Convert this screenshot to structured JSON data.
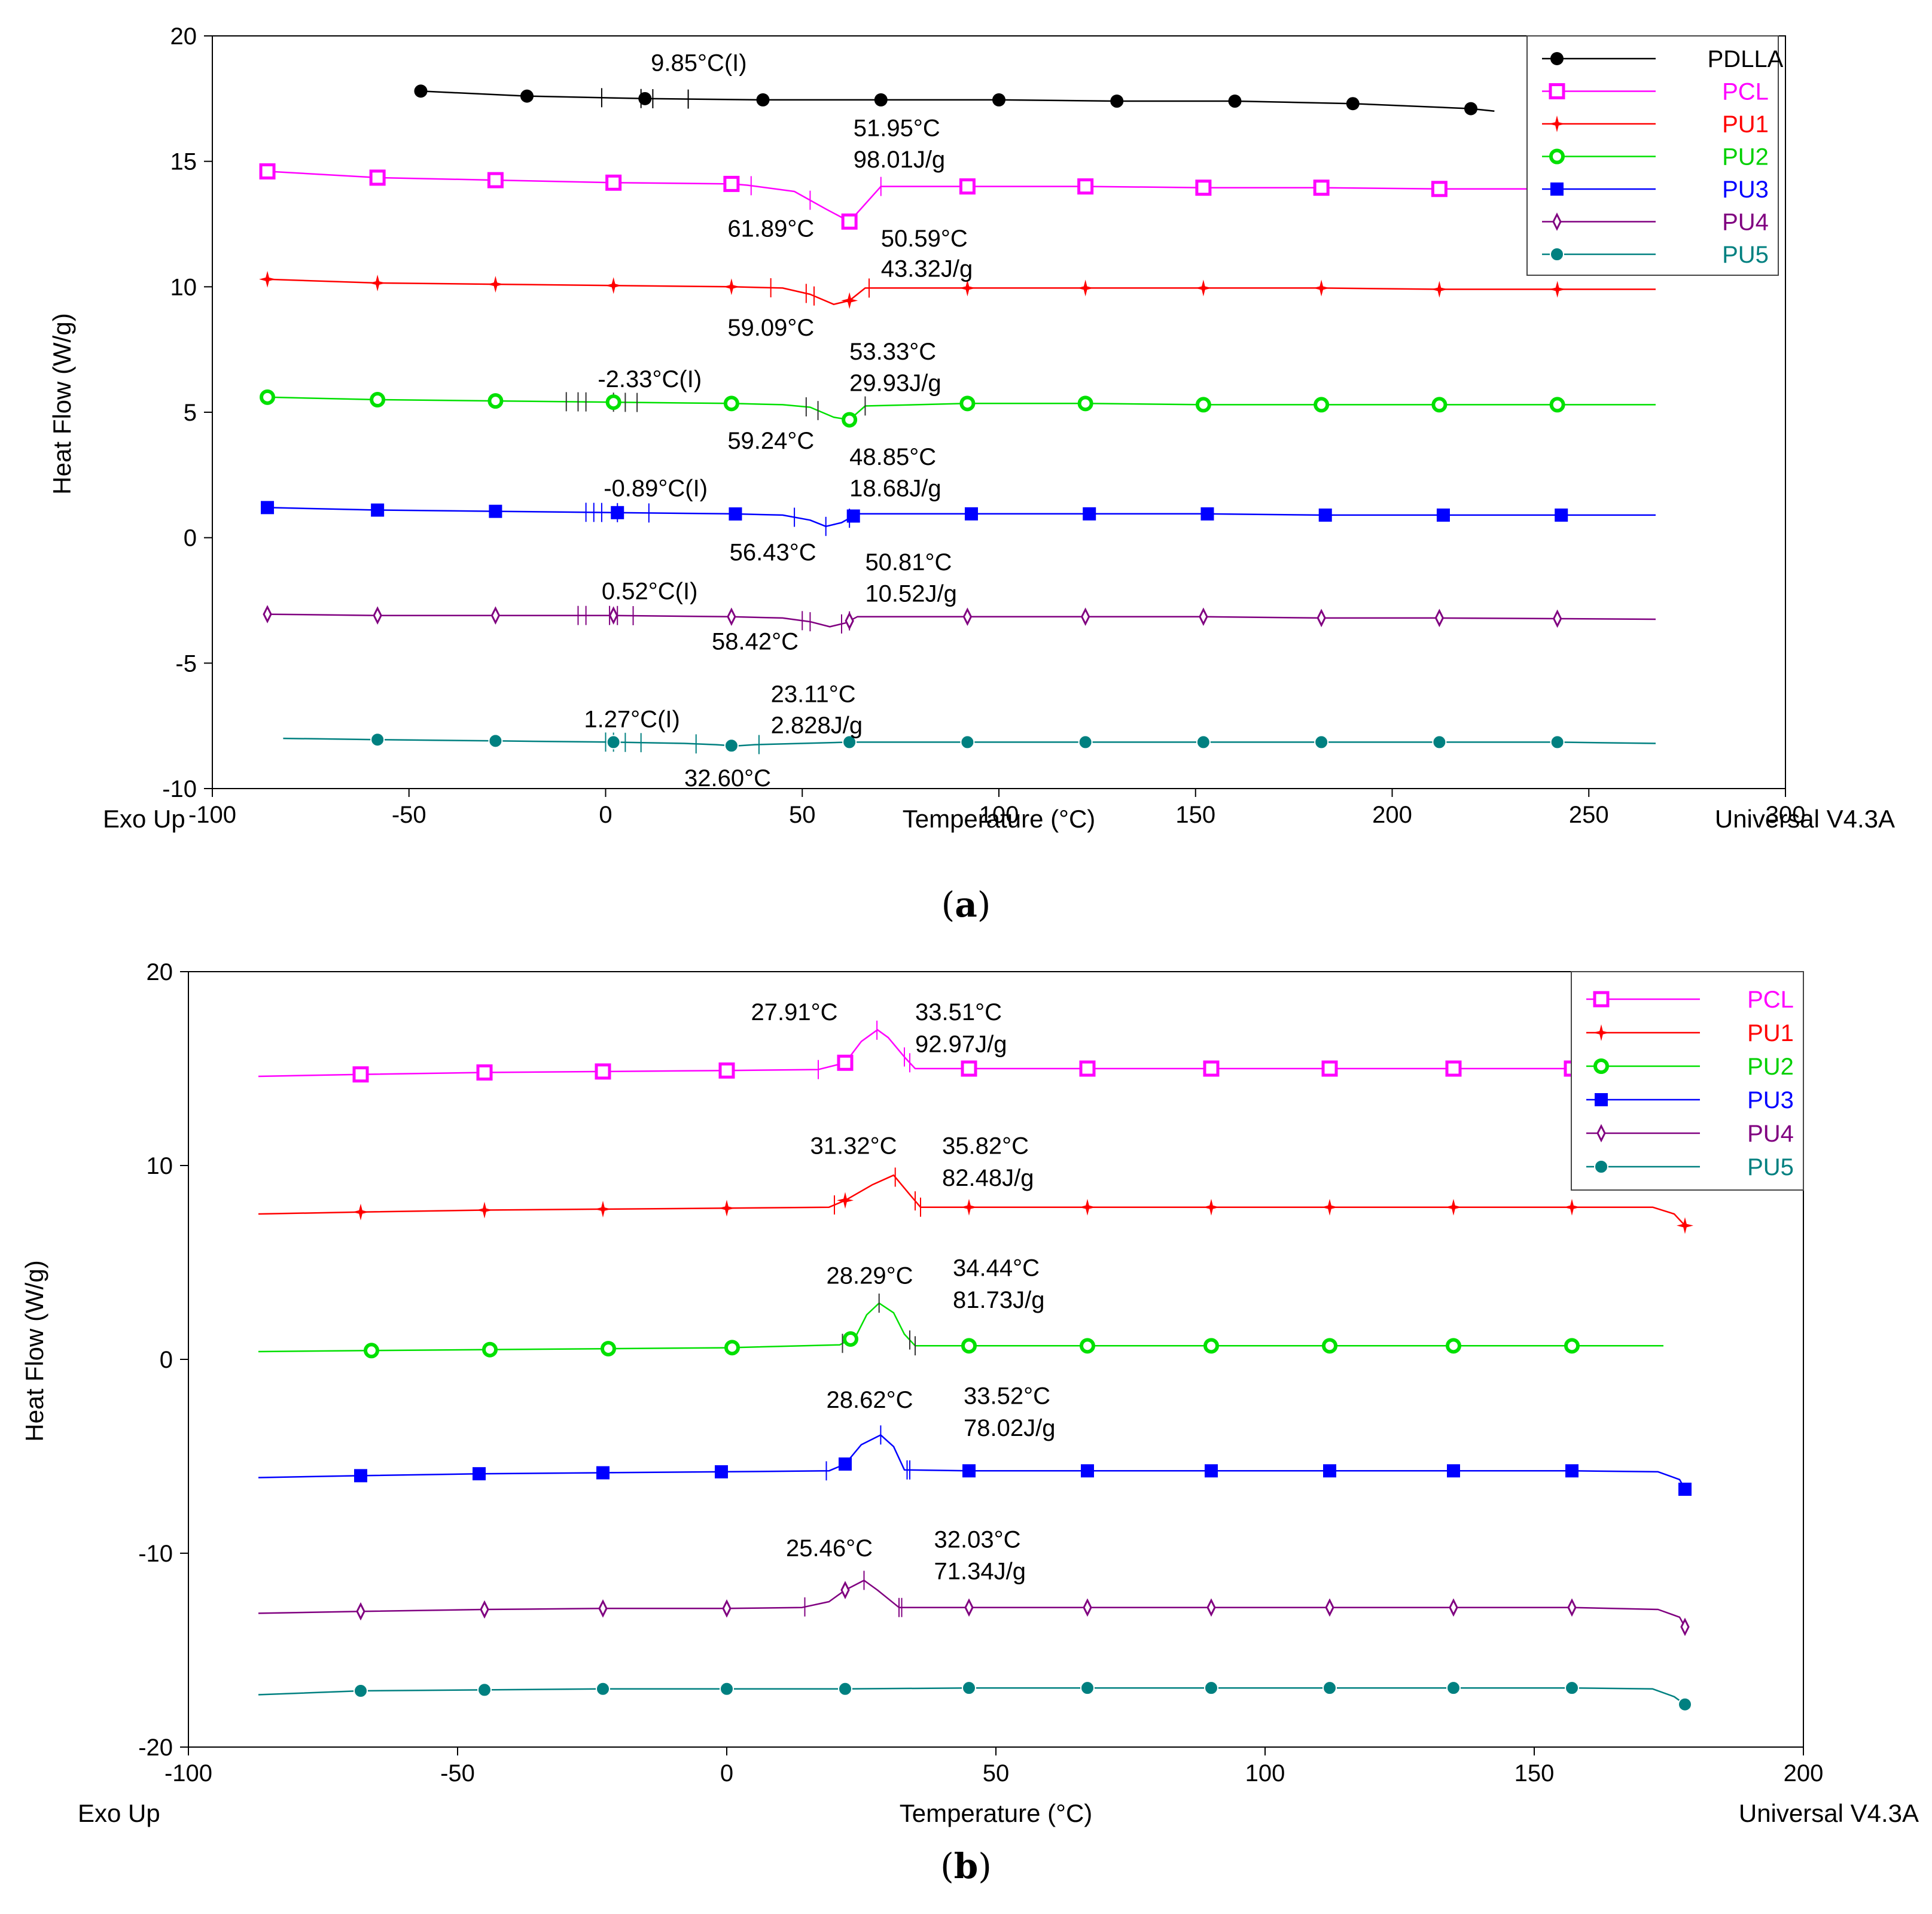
{
  "colors": {
    "PDLLA": "#000000",
    "PCL": "#ff00ff",
    "PU1": "#ff0000",
    "PU2": "#00e000",
    "PU3": "#0000ff",
    "PU4": "#800080",
    "PU5": "#008080",
    "axis": "#000000",
    "background": "#ffffff"
  },
  "chart_data": [
    {
      "panel": "(a)",
      "panel_letter": "a",
      "type": "line",
      "xlabel": "Temperature (°C)",
      "ylabel": "Heat Flow (W/g)",
      "corner_left": "Exo Up",
      "corner_right": "Universal V4.3A",
      "xlim": [
        -100,
        300
      ],
      "ylim": [
        -10,
        20
      ],
      "xticks": [
        -100,
        -50,
        0,
        50,
        100,
        150,
        200,
        250,
        300
      ],
      "yticks": [
        -10,
        -5,
        0,
        5,
        10,
        15,
        20
      ],
      "legend_position": "top-right",
      "series": [
        {
          "name": "PDLLA",
          "marker": "filled-circle",
          "x": [
            -47,
            -20,
            10,
            40,
            70,
            100,
            130,
            160,
            190,
            220,
            226
          ],
          "y": [
            17.8,
            17.6,
            17.5,
            17.45,
            17.45,
            17.45,
            17.4,
            17.4,
            17.3,
            17.1,
            17.0
          ],
          "marker_x": [
            -47,
            -20,
            10,
            40,
            70,
            100,
            130,
            160,
            190,
            220
          ],
          "tick_x": [
            -1,
            9,
            12,
            21
          ]
        },
        {
          "name": "PCL",
          "marker": "open-square",
          "x": [
            -86,
            -58,
            -28,
            2,
            32,
            36,
            48,
            56,
            62,
            66,
            70,
            92,
            122,
            152,
            182,
            212,
            267
          ],
          "y": [
            14.6,
            14.35,
            14.25,
            14.15,
            14.1,
            14.05,
            13.8,
            13.1,
            12.6,
            13.3,
            14.0,
            14.0,
            14.0,
            13.95,
            13.95,
            13.9,
            13.9
          ],
          "marker_x": [
            -86,
            -58,
            -28,
            2,
            32,
            62,
            92,
            122,
            152,
            182,
            212
          ],
          "tick_x": [
            37,
            52,
            70
          ]
        },
        {
          "name": "PU1",
          "marker": "star",
          "x": [
            -86,
            -58,
            -28,
            2,
            32,
            45,
            52,
            58,
            62,
            66,
            92,
            122,
            152,
            182,
            212,
            267
          ],
          "y": [
            10.3,
            10.15,
            10.1,
            10.05,
            10.0,
            9.95,
            9.7,
            9.3,
            9.45,
            9.95,
            9.95,
            9.95,
            9.95,
            9.95,
            9.9,
            9.9
          ],
          "marker_x": [
            -86,
            -58,
            -28,
            2,
            32,
            62,
            92,
            122,
            152,
            182,
            212,
            242
          ],
          "tick_x": [
            42,
            51,
            53,
            67
          ]
        },
        {
          "name": "PU2",
          "marker": "open-circle",
          "x": [
            -86,
            -58,
            -28,
            2,
            32,
            45,
            52,
            58,
            62,
            66,
            92,
            122,
            152,
            182,
            212,
            267
          ],
          "y": [
            5.6,
            5.5,
            5.45,
            5.4,
            5.35,
            5.3,
            5.2,
            4.8,
            4.7,
            5.25,
            5.35,
            5.35,
            5.3,
            5.3,
            5.3,
            5.3
          ],
          "marker_x": [
            -86,
            -58,
            -28,
            2,
            32,
            62,
            92,
            122,
            152,
            182,
            212,
            242
          ],
          "tick_x": [
            -10,
            -7,
            -5,
            2,
            5,
            8,
            51,
            54,
            66
          ]
        },
        {
          "name": "PU3",
          "marker": "filled-square",
          "x": [
            -86,
            -58,
            -28,
            2,
            32,
            45,
            52,
            56,
            60,
            64,
            92,
            122,
            152,
            182,
            212,
            267
          ],
          "y": [
            1.2,
            1.1,
            1.05,
            1.0,
            0.95,
            0.9,
            0.7,
            0.45,
            0.6,
            0.95,
            0.95,
            0.95,
            0.95,
            0.9,
            0.9,
            0.9
          ],
          "marker_x": [
            -86,
            -58,
            -28,
            3,
            33,
            63,
            93,
            123,
            153,
            183,
            213,
            243
          ],
          "tick_x": [
            -5,
            -3,
            -1,
            3,
            11,
            48,
            56,
            62
          ]
        },
        {
          "name": "PU4",
          "marker": "open-diamond",
          "x": [
            -86,
            -58,
            -28,
            2,
            32,
            45,
            52,
            57,
            61,
            64,
            92,
            122,
            152,
            182,
            212,
            267
          ],
          "y": [
            -3.05,
            -3.1,
            -3.1,
            -3.1,
            -3.15,
            -3.2,
            -3.35,
            -3.55,
            -3.4,
            -3.15,
            -3.15,
            -3.15,
            -3.15,
            -3.2,
            -3.2,
            -3.25
          ],
          "marker_x": [
            -86,
            -58,
            -28,
            2,
            32,
            62,
            92,
            122,
            152,
            182,
            212,
            242
          ],
          "tick_x": [
            -7,
            -5,
            1,
            3,
            7,
            50,
            52,
            60,
            62
          ]
        },
        {
          "name": "PU5",
          "marker": "filled-circle-open",
          "x": [
            -82,
            -58,
            -28,
            2,
            20,
            28,
            33,
            38,
            62,
            92,
            122,
            152,
            182,
            212,
            242,
            267
          ],
          "y": [
            -8.0,
            -8.05,
            -8.1,
            -8.15,
            -8.2,
            -8.25,
            -8.3,
            -8.25,
            -8.15,
            -8.15,
            -8.15,
            -8.15,
            -8.15,
            -8.15,
            -8.15,
            -8.2
          ],
          "marker_x": [
            -58,
            -28,
            2,
            32,
            62,
            92,
            122,
            152,
            182,
            212,
            242
          ],
          "tick_x": [
            0,
            2,
            5,
            9,
            23,
            39
          ]
        }
      ],
      "annotations": [
        {
          "text": "9.85°C(I)",
          "x": 11.5,
          "y": 18.6,
          "anchor": "start"
        },
        {
          "text": "51.95°C",
          "x": 63,
          "y": 16.0,
          "anchor": "start"
        },
        {
          "text": "98.01J/g",
          "x": 63,
          "y": 14.75,
          "anchor": "start"
        },
        {
          "text": "61.89°C",
          "x": 31,
          "y": 12.0,
          "anchor": "start"
        },
        {
          "text": "50.59°C",
          "x": 70,
          "y": 11.6,
          "anchor": "start"
        },
        {
          "text": "43.32J/g",
          "x": 70,
          "y": 10.4,
          "anchor": "start"
        },
        {
          "text": "59.09°C",
          "x": 31,
          "y": 8.05,
          "anchor": "start"
        },
        {
          "text": "53.33°C",
          "x": 62,
          "y": 7.1,
          "anchor": "start"
        },
        {
          "text": "29.93J/g",
          "x": 62,
          "y": 5.85,
          "anchor": "start"
        },
        {
          "text": "-2.33°C(I)",
          "x": -2,
          "y": 6.0,
          "anchor": "start"
        },
        {
          "text": "59.24°C",
          "x": 31,
          "y": 3.55,
          "anchor": "start"
        },
        {
          "text": "48.85°C",
          "x": 62,
          "y": 2.9,
          "anchor": "start"
        },
        {
          "text": "18.68J/g",
          "x": 62,
          "y": 1.65,
          "anchor": "start"
        },
        {
          "text": "-0.89°C(I)",
          "x": -0.5,
          "y": 1.65,
          "anchor": "start"
        },
        {
          "text": "56.43°C",
          "x": 31.5,
          "y": -0.9,
          "anchor": "start"
        },
        {
          "text": "50.81°C",
          "x": 66,
          "y": -1.3,
          "anchor": "start"
        },
        {
          "text": "10.52J/g",
          "x": 66,
          "y": -2.55,
          "anchor": "start"
        },
        {
          "text": "0.52°C(I)",
          "x": -1,
          "y": -2.45,
          "anchor": "start"
        },
        {
          "text": "58.42°C",
          "x": 27,
          "y": -4.45,
          "anchor": "start"
        },
        {
          "text": "23.11°C",
          "x": 42,
          "y": -6.55,
          "anchor": "start"
        },
        {
          "text": "2.828J/g",
          "x": 42,
          "y": -7.8,
          "anchor": "start"
        },
        {
          "text": "1.27°C(I)",
          "x": -5.5,
          "y": -7.55,
          "anchor": "start"
        },
        {
          "text": "32.60°C",
          "x": 20,
          "y": -9.9,
          "anchor": "start"
        }
      ]
    },
    {
      "panel": "(b)",
      "panel_letter": "b",
      "type": "line",
      "xlabel": "Temperature (°C)",
      "ylabel": "Heat Flow (W/g)",
      "corner_left": "Exo Up",
      "corner_right": "Universal V4.3A",
      "xlim": [
        -100,
        200
      ],
      "ylim": [
        -20,
        20
      ],
      "xticks": [
        -100,
        -50,
        0,
        50,
        100,
        150,
        200
      ],
      "yticks": [
        -20,
        -10,
        0,
        10,
        20
      ],
      "legend_position": "top-right",
      "series": [
        {
          "name": "PCL",
          "marker": "open-square",
          "x": [
            -87,
            -68,
            -45,
            -23,
            0,
            17,
            22,
            25,
            28,
            30,
            33,
            35,
            45,
            67,
            90,
            112,
            135,
            157,
            176
          ],
          "y": [
            14.6,
            14.7,
            14.8,
            14.85,
            14.9,
            14.95,
            15.3,
            16.4,
            17.0,
            16.6,
            15.6,
            15.0,
            15.0,
            15.0,
            15.0,
            15.0,
            15.0,
            15.0,
            15.0
          ],
          "marker_x": [
            -68,
            -45,
            -23,
            0,
            22,
            45,
            67,
            90,
            112,
            135,
            157
          ],
          "tick_x": [
            17,
            27.9,
            33,
            34
          ]
        },
        {
          "name": "PU1",
          "marker": "star",
          "x": [
            -87,
            -68,
            -45,
            -23,
            0,
            19,
            22,
            27,
            31,
            34,
            36,
            45,
            67,
            90,
            112,
            135,
            157,
            172,
            176,
            178
          ],
          "y": [
            7.5,
            7.6,
            7.7,
            7.75,
            7.8,
            7.85,
            8.2,
            9.0,
            9.5,
            8.5,
            7.85,
            7.85,
            7.85,
            7.85,
            7.85,
            7.85,
            7.85,
            7.85,
            7.5,
            6.9
          ],
          "marker_x": [
            -68,
            -45,
            -23,
            0,
            22,
            45,
            67,
            90,
            112,
            135,
            157,
            178
          ],
          "tick_x": [
            20,
            31.3,
            35,
            36
          ]
        },
        {
          "name": "PU2",
          "marker": "open-circle",
          "x": [
            -87,
            -68,
            -45,
            -23,
            0,
            21,
            24,
            26,
            28.3,
            31,
            33,
            35,
            45,
            67,
            90,
            112,
            135,
            157,
            174
          ],
          "y": [
            0.4,
            0.45,
            0.5,
            0.55,
            0.6,
            0.75,
            1.2,
            2.3,
            2.9,
            2.4,
            1.3,
            0.7,
            0.7,
            0.7,
            0.7,
            0.7,
            0.7,
            0.7,
            0.7
          ],
          "marker_x": [
            -66,
            -44,
            -22,
            1,
            23,
            45,
            67,
            90,
            112,
            135,
            157
          ],
          "tick_x": [
            21.5,
            28.3,
            34,
            35
          ]
        },
        {
          "name": "PU3",
          "marker": "filled-square",
          "x": [
            -87,
            -68,
            -46,
            -23,
            -1,
            19,
            22,
            25,
            28.6,
            31,
            33,
            45,
            67,
            90,
            112,
            135,
            157,
            173,
            177,
            178
          ],
          "y": [
            -6.1,
            -6.0,
            -5.9,
            -5.85,
            -5.8,
            -5.75,
            -5.4,
            -4.4,
            -3.9,
            -4.5,
            -5.7,
            -5.75,
            -5.75,
            -5.75,
            -5.75,
            -5.75,
            -5.75,
            -5.8,
            -6.2,
            -6.7
          ],
          "marker_x": [
            -68,
            -46,
            -23,
            -1,
            22,
            45,
            67,
            90,
            112,
            135,
            157,
            178
          ],
          "tick_x": [
            18.5,
            28.6,
            33.5,
            34
          ]
        },
        {
          "name": "PU4",
          "marker": "open-diamond",
          "x": [
            -87,
            -68,
            -45,
            -23,
            0,
            14,
            19,
            22,
            25.5,
            28,
            32,
            45,
            67,
            90,
            112,
            135,
            157,
            173,
            177,
            178
          ],
          "y": [
            -13.1,
            -13.0,
            -12.9,
            -12.85,
            -12.85,
            -12.8,
            -12.5,
            -11.9,
            -11.4,
            -11.9,
            -12.8,
            -12.8,
            -12.8,
            -12.8,
            -12.8,
            -12.8,
            -12.8,
            -12.9,
            -13.3,
            -13.8
          ],
          "marker_x": [
            -68,
            -45,
            -23,
            0,
            22,
            45,
            67,
            90,
            112,
            135,
            157,
            178
          ],
          "tick_x": [
            14.5,
            25.5,
            32,
            32.5
          ]
        },
        {
          "name": "PU5",
          "marker": "filled-circle-open",
          "x": [
            -87,
            -68,
            -45,
            -23,
            0,
            22,
            45,
            67,
            90,
            112,
            135,
            157,
            172,
            176,
            178
          ],
          "y": [
            -17.3,
            -17.1,
            -17.05,
            -17.0,
            -17.0,
            -17.0,
            -16.95,
            -16.95,
            -16.95,
            -16.95,
            -16.95,
            -16.95,
            -17.0,
            -17.4,
            -17.8
          ],
          "marker_x": [
            -68,
            -45,
            -23,
            0,
            22,
            45,
            67,
            90,
            112,
            135,
            157,
            178
          ],
          "tick_x": []
        }
      ],
      "annotations": [
        {
          "text": "27.91°C",
          "x": 4.5,
          "y": 17.5,
          "anchor": "start"
        },
        {
          "text": "33.51°C",
          "x": 35,
          "y": 17.5,
          "anchor": "start"
        },
        {
          "text": "92.97J/g",
          "x": 35,
          "y": 15.85,
          "anchor": "start"
        },
        {
          "text": "31.32°C",
          "x": 15.5,
          "y": 10.6,
          "anchor": "start"
        },
        {
          "text": "35.82°C",
          "x": 40,
          "y": 10.6,
          "anchor": "start"
        },
        {
          "text": "82.48J/g",
          "x": 40,
          "y": 8.95,
          "anchor": "start"
        },
        {
          "text": "28.29°C",
          "x": 18.5,
          "y": 3.9,
          "anchor": "start"
        },
        {
          "text": "34.44°C",
          "x": 42,
          "y": 4.3,
          "anchor": "start"
        },
        {
          "text": "81.73J/g",
          "x": 42,
          "y": 2.65,
          "anchor": "start"
        },
        {
          "text": "28.62°C",
          "x": 18.5,
          "y": -2.5,
          "anchor": "start"
        },
        {
          "text": "33.52°C",
          "x": 44,
          "y": -2.3,
          "anchor": "start"
        },
        {
          "text": "78.02J/g",
          "x": 44,
          "y": -3.95,
          "anchor": "start"
        },
        {
          "text": "25.46°C",
          "x": 11,
          "y": -10.15,
          "anchor": "start"
        },
        {
          "text": "32.03°C",
          "x": 38.5,
          "y": -9.7,
          "anchor": "start"
        },
        {
          "text": "71.34J/g",
          "x": 38.5,
          "y": -11.35,
          "anchor": "start"
        }
      ]
    }
  ]
}
